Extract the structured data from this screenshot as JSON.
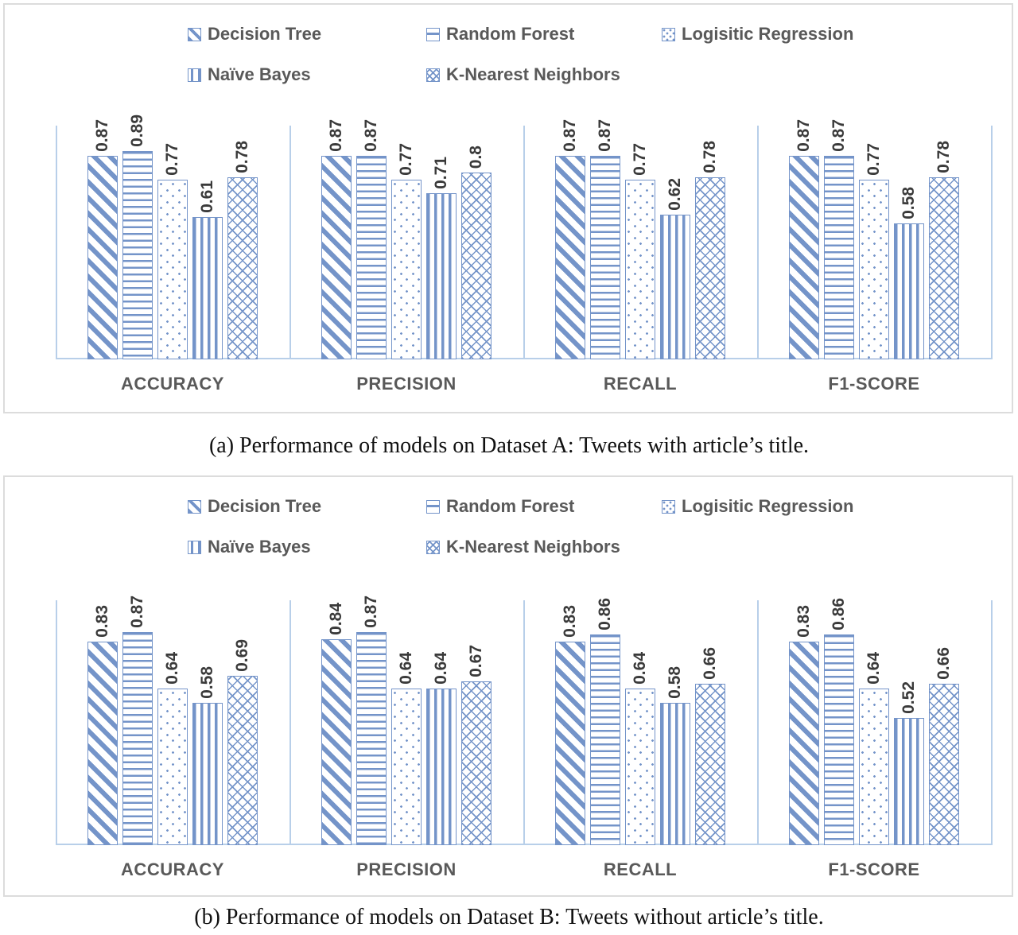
{
  "colors": {
    "bar_blue": "#7494c9",
    "axis_blue": "#b8cfe9",
    "value_label_text": "#3a3a3a",
    "category_label_text": "#595959",
    "legend_text": "#595959",
    "chart_border": "#dcdcdc",
    "caption_text": "#111111"
  },
  "chart_data": [
    {
      "type": "bar",
      "caption": "(a) Performance of models on Dataset A: Tweets with article’s title.",
      "categories": [
        "ACCURACY",
        "PRECISION",
        "RECALL",
        "F1-SCORE"
      ],
      "ylim": [
        0,
        1
      ],
      "grid": false,
      "legend_position": "top",
      "series": [
        {
          "name": "Decision Tree",
          "pattern": "diagonal-stripes",
          "values": [
            0.87,
            0.87,
            0.87,
            0.87
          ],
          "labels": [
            "0.87",
            "0.87",
            "0.87",
            "0.87"
          ]
        },
        {
          "name": "Random Forest",
          "pattern": "horizontal-lines",
          "values": [
            0.89,
            0.87,
            0.87,
            0.87
          ],
          "labels": [
            "0.89",
            "0.87",
            "0.87",
            "0.87"
          ]
        },
        {
          "name": "Logisitic Regression",
          "pattern": "dots",
          "values": [
            0.77,
            0.77,
            0.77,
            0.77
          ],
          "labels": [
            "0.77",
            "0.77",
            "0.77",
            "0.77"
          ]
        },
        {
          "name": "Naïve Bayes",
          "pattern": "vertical-lines",
          "values": [
            0.61,
            0.71,
            0.62,
            0.58
          ],
          "labels": [
            "0.61",
            "0.71",
            "0.62",
            "0.58"
          ]
        },
        {
          "name": "K-Nearest Neighbors",
          "pattern": "crosshatch",
          "values": [
            0.78,
            0.8,
            0.78,
            0.78
          ],
          "labels": [
            "0.78",
            "0.8",
            "0.78",
            "0.78"
          ]
        }
      ]
    },
    {
      "type": "bar",
      "caption": "(b) Performance of models on Dataset B: Tweets without article’s title.",
      "categories": [
        "ACCURACY",
        "PRECISION",
        "RECALL",
        "F1-SCORE"
      ],
      "ylim": [
        0,
        1
      ],
      "grid": false,
      "legend_position": "top",
      "series": [
        {
          "name": "Decision Tree",
          "pattern": "diagonal-stripes",
          "values": [
            0.83,
            0.84,
            0.83,
            0.83
          ],
          "labels": [
            "0.83",
            "0.84",
            "0.83",
            "0.83"
          ]
        },
        {
          "name": "Random Forest",
          "pattern": "horizontal-lines",
          "values": [
            0.87,
            0.87,
            0.86,
            0.86
          ],
          "labels": [
            "0.87",
            "0.87",
            "0.86",
            "0.86"
          ]
        },
        {
          "name": "Logisitic Regression",
          "pattern": "dots",
          "values": [
            0.64,
            0.64,
            0.64,
            0.64
          ],
          "labels": [
            "0.64",
            "0.64",
            "0.64",
            "0.64"
          ]
        },
        {
          "name": "Naïve Bayes",
          "pattern": "vertical-lines",
          "values": [
            0.58,
            0.64,
            0.58,
            0.52
          ],
          "labels": [
            "0.58",
            "0.64",
            "0.58",
            "0.52"
          ]
        },
        {
          "name": "K-Nearest Neighbors",
          "pattern": "crosshatch",
          "values": [
            0.69,
            0.67,
            0.66,
            0.66
          ],
          "labels": [
            "0.69",
            "0.67",
            "0.66",
            "0.66"
          ]
        }
      ]
    }
  ]
}
